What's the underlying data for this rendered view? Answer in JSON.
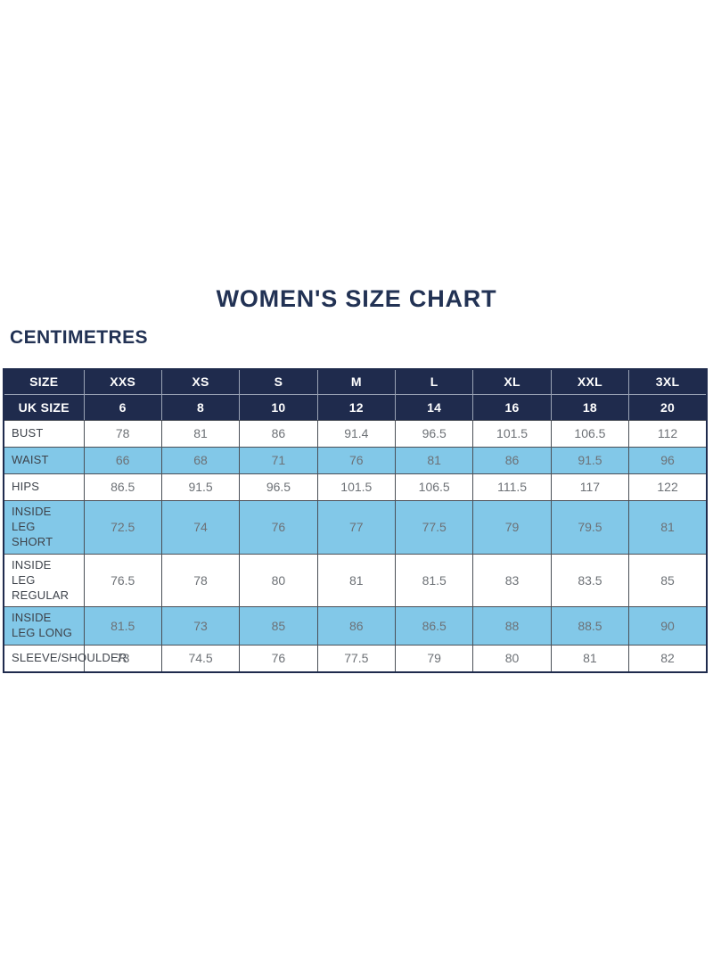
{
  "page": {
    "title": "WOMEN'S SIZE CHART",
    "unit_label": "CENTIMETRES"
  },
  "colors": {
    "header_bg": "#1f2b4d",
    "alt_row_bg": "#82c8e8",
    "title_text": "#223254",
    "header_text": "#ffffff",
    "label_text": "#3e434b",
    "value_text": "#6d7176",
    "border": "#4a4f57",
    "header_border": "#9aa3b5"
  },
  "chart_data": {
    "type": "table",
    "title": "WOMEN'S SIZE CHART",
    "unit": "CENTIMETRES",
    "header_rows": [
      {
        "label": "SIZE",
        "values": [
          "XXS",
          "XS",
          "S",
          "M",
          "L",
          "XL",
          "XXL",
          "3XL"
        ]
      },
      {
        "label": "UK SIZE",
        "values": [
          "6",
          "8",
          "10",
          "12",
          "14",
          "16",
          "18",
          "20"
        ]
      }
    ],
    "rows": [
      {
        "label": "BUST",
        "shaded": false,
        "values": [
          "78",
          "81",
          "86",
          "91.4",
          "96.5",
          "101.5",
          "106.5",
          "112"
        ]
      },
      {
        "label": "WAIST",
        "shaded": true,
        "values": [
          "66",
          "68",
          "71",
          "76",
          "81",
          "86",
          "91.5",
          "96"
        ]
      },
      {
        "label": "HIPS",
        "shaded": false,
        "values": [
          "86.5",
          "91.5",
          "96.5",
          "101.5",
          "106.5",
          "111.5",
          "117",
          "122"
        ]
      },
      {
        "label": "INSIDE LEG SHORT",
        "shaded": true,
        "values": [
          "72.5",
          "74",
          "76",
          "77",
          "77.5",
          "79",
          "79.5",
          "81"
        ]
      },
      {
        "label": "INSIDE LEG REGULAR",
        "shaded": false,
        "values": [
          "76.5",
          "78",
          "80",
          "81",
          "81.5",
          "83",
          "83.5",
          "85"
        ]
      },
      {
        "label": "INSIDE LEG LONG",
        "shaded": true,
        "values": [
          "81.5",
          "73",
          "85",
          "86",
          "86.5",
          "88",
          "88.5",
          "90"
        ]
      },
      {
        "label": "SLEEVE/SHOULDER",
        "shaded": false,
        "values": [
          "73",
          "74.5",
          "76",
          "77.5",
          "79",
          "80",
          "81",
          "82"
        ]
      }
    ]
  }
}
